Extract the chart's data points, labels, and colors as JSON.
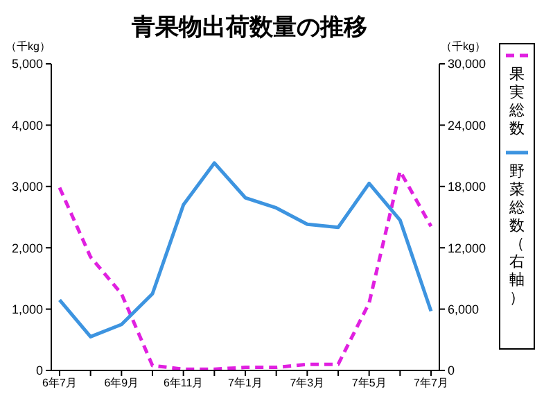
{
  "chart_data": {
    "type": "line",
    "title": "青果物出荷数量の推移",
    "categories": [
      "6年7月",
      null,
      "6年9月",
      null,
      "6年11月",
      null,
      "7年1月",
      null,
      "7年3月",
      null,
      "7年5月",
      null,
      "7年7月"
    ],
    "series": [
      {
        "name": "果実総数",
        "color": "#e020e0",
        "line_style": "dashed",
        "values": [
          2980,
          1850,
          1250,
          80,
          20,
          20,
          50,
          50,
          100,
          100,
          1100,
          3250,
          2350
        ]
      },
      {
        "name": "野菜総数（右軸）",
        "color": "#3d94e0",
        "line_style": "solid",
        "axis": "y2",
        "values": [
          6900,
          3300,
          4500,
          7500,
          16200,
          20300,
          16900,
          15900,
          14300,
          14000,
          18300,
          14700,
          5800
        ]
      }
    ],
    "ylim": [
      0,
      5000
    ],
    "yticks": [
      0,
      {
        "value": 1000,
        "label": "1,000"
      },
      {
        "value": 2000,
        "label": "2,000"
      },
      {
        "value": 3000,
        "label": "3,000"
      },
      {
        "value": 4000,
        "label": "4,000"
      },
      {
        "value": 5000,
        "label": "5,000"
      }
    ],
    "y2lim": [
      0,
      30000
    ],
    "y2ticks": [
      0,
      {
        "value": 6000,
        "label": "6,000"
      },
      {
        "value": 12000,
        "label": "12,000"
      },
      {
        "value": 18000,
        "label": "18,000"
      },
      {
        "value": 24000,
        "label": "24,000"
      },
      {
        "value": 30000,
        "label": "30,000"
      }
    ],
    "annotations": [
      "（千kg）",
      "（千kg）"
    ],
    "grid": false,
    "legend": "right",
    "marker": "none"
  }
}
